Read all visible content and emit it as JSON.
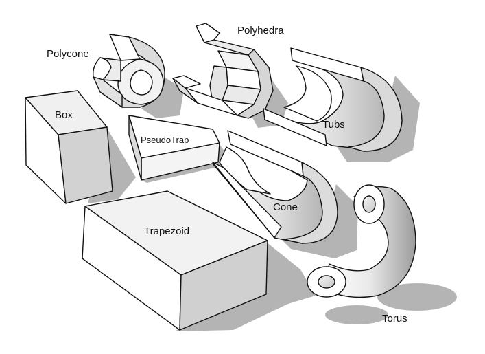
{
  "figure": {
    "labels": {
      "box": "Box",
      "polycone": "Polycone",
      "polyhedra": "Polyhedra",
      "tubs": "Tubs",
      "pseudotrap": "PseudoTrap",
      "cone": "Cone",
      "trapezoid": "Trapezoid",
      "torus": "Torus"
    }
  },
  "colors": {
    "face_light": "#ffffff",
    "face_mid": "#e6e6e6",
    "face_dark": "#c2c2c2",
    "shadow": "#b4b4b4",
    "outline": "#111111"
  }
}
